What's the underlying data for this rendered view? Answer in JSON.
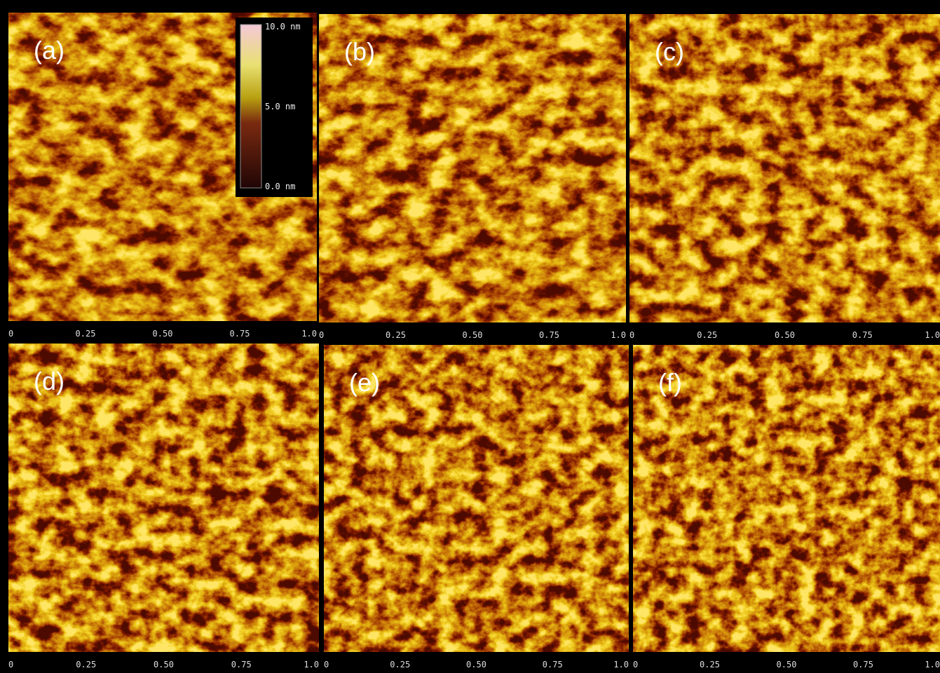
{
  "panels": [
    {
      "label": "(a)"
    },
    {
      "label": "(b)"
    },
    {
      "label": "(c)"
    },
    {
      "label": "(d)"
    },
    {
      "label": "(e)"
    },
    {
      "label": "(f)"
    }
  ],
  "x_axis": {
    "ticks": [
      "0",
      "0.25",
      "0.50",
      "0.75",
      "1.0"
    ]
  },
  "colorbar": {
    "labels": [
      "10.0 nm",
      "5.0 nm",
      "0.0 nm"
    ]
  }
}
